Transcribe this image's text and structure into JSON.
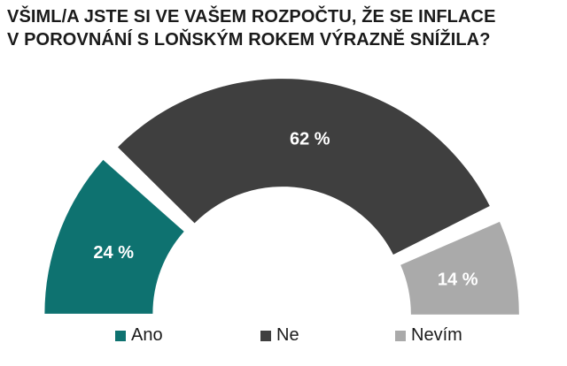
{
  "chart_data": {
    "type": "pie",
    "variant": "semi-donut",
    "title_lines": [
      "VŠIML/A JSTE SI VE VAŠEM ROZPOČTU, ŽE SE INFLACE",
      "V POROVNÁNÍ S LOŇSKÝM ROKEM VÝRAZNĚ SNÍŽILA?"
    ],
    "slices": [
      {
        "name": "Ano",
        "value": 24,
        "label": "24 %",
        "color": "#0e7270",
        "label_color": "#ffffff"
      },
      {
        "name": "Ne",
        "value": 62,
        "label": "62 %",
        "color": "#3f3f3f",
        "label_color": "#ffffff"
      },
      {
        "name": "Nevím",
        "value": 14,
        "label": "14 %",
        "color": "#aaaaaa",
        "label_color": "#ffffff"
      }
    ],
    "legend_position": "bottom",
    "grid": false
  }
}
